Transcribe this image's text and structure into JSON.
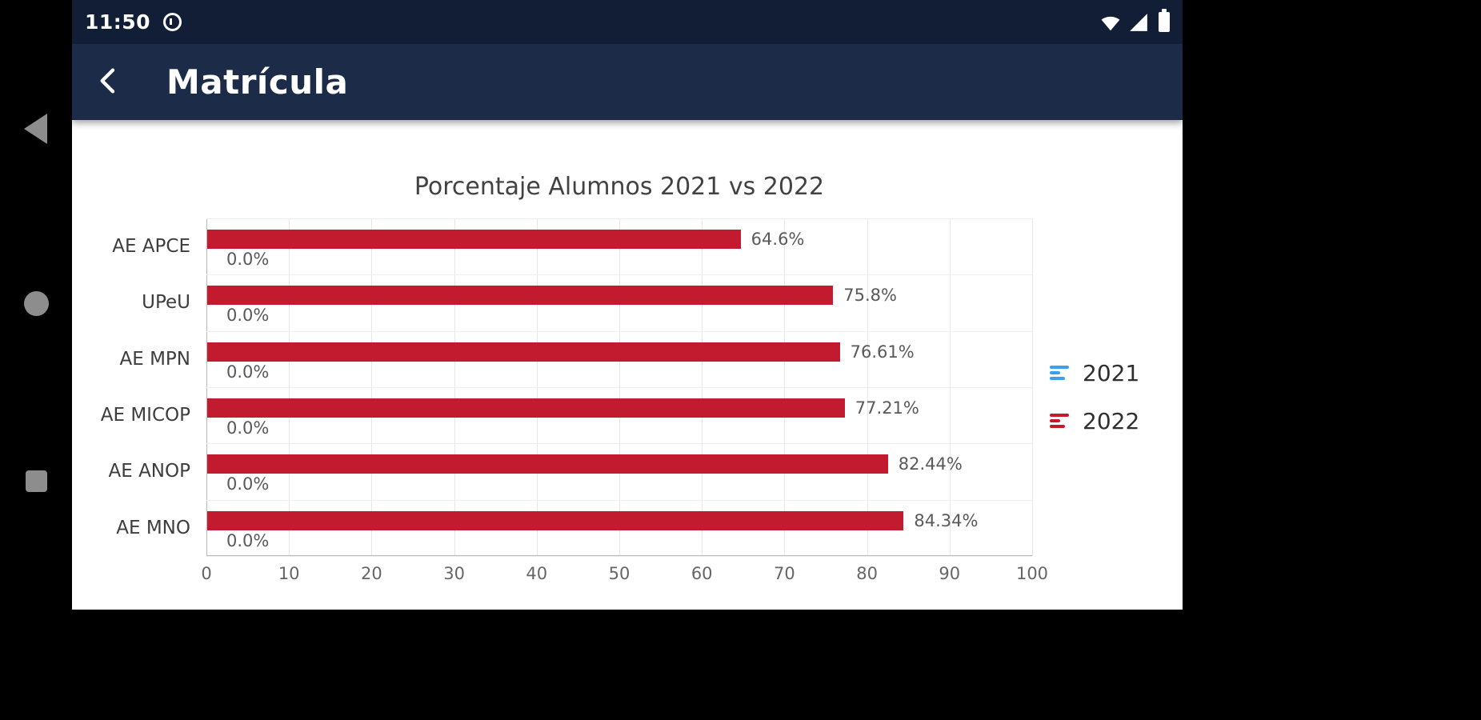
{
  "status_bar": {
    "time": "11:50"
  },
  "app_bar": {
    "title": "Matrícula"
  },
  "colors": {
    "status_bar_bg": "#121d36",
    "app_bar_bg": "#1c2b47",
    "series_2021": "#3d9ff0",
    "series_2022": "#c21b2f",
    "content_bg": "#ffffff"
  },
  "chart_data": {
    "type": "bar",
    "orientation": "horizontal",
    "title": "Porcentaje Alumnos 2021 vs 2022",
    "categories": [
      "AE APCE",
      "UPeU",
      "AE MPN",
      "AE MICOP",
      "AE ANOP",
      "AE MNO"
    ],
    "series": [
      {
        "name": "2021",
        "color": "#3d9ff0",
        "values": [
          0,
          0,
          0,
          0,
          0,
          0
        ],
        "value_labels": [
          "0.0%",
          "0.0%",
          "0.0%",
          "0.0%",
          "0.0%",
          "0.0%"
        ]
      },
      {
        "name": "2022",
        "color": "#c21b2f",
        "values": [
          64.6,
          75.8,
          76.61,
          77.21,
          82.44,
          84.34
        ],
        "value_labels": [
          "64.6%",
          "75.8%",
          "76.61%",
          "77.21%",
          "82.44%",
          "84.34%"
        ]
      }
    ],
    "xlim": [
      0,
      100
    ],
    "x_ticks": [
      0,
      10,
      20,
      30,
      40,
      50,
      60,
      70,
      80,
      90,
      100
    ],
    "grid": true,
    "legend_position": "right"
  }
}
